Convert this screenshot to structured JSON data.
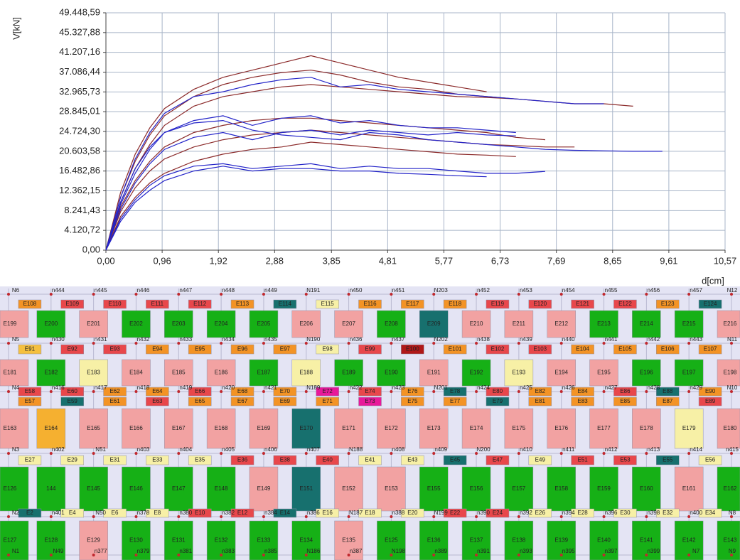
{
  "chart_data": {
    "type": "line",
    "y_label": "V[kN]",
    "x_label": "d[cm]",
    "x": [
      0,
      0.25,
      0.5,
      0.75,
      1,
      1.5,
      2,
      2.5,
      3,
      3.5,
      4,
      4.5,
      5,
      5.5,
      6,
      6.5,
      7,
      7.5,
      8,
      8.5,
      9,
      9.5
    ],
    "series": [
      {
        "color": "#8b2a2a",
        "values": [
          0,
          12000,
          20000,
          25500,
          29500,
          33500,
          36000,
          37500,
          39000,
          40500,
          39000,
          37500,
          36000,
          35000,
          34000,
          33000,
          null,
          null,
          null,
          null,
          null,
          null
        ]
      },
      {
        "color": "#8b2a2a",
        "values": [
          0,
          11000,
          18500,
          24000,
          28000,
          32000,
          34500,
          36000,
          37000,
          37500,
          36500,
          35000,
          34000,
          33500,
          32500,
          32000,
          31500,
          31000,
          30500,
          30500,
          30000,
          null
        ]
      },
      {
        "color": "#8b2a2a",
        "values": [
          0,
          10000,
          17000,
          22000,
          26000,
          30000,
          32000,
          33000,
          34000,
          34500,
          34000,
          33500,
          33000,
          32500,
          32000,
          31800,
          31500,
          null,
          null,
          null,
          null,
          null
        ]
      },
      {
        "color": "#8b2a2a",
        "values": [
          0,
          9000,
          14500,
          18500,
          21500,
          24500,
          26000,
          27000,
          27500,
          27500,
          27000,
          26500,
          26000,
          25500,
          25000,
          24500,
          23500,
          23000,
          null,
          null,
          null,
          null
        ]
      },
      {
        "color": "#8b2a2a",
        "values": [
          0,
          8000,
          13000,
          16500,
          19000,
          21500,
          23000,
          24000,
          24500,
          25000,
          24500,
          24000,
          23500,
          23000,
          22500,
          22000,
          21800,
          21500,
          21500,
          null,
          null,
          null
        ]
      },
      {
        "color": "#8b2a2a",
        "values": [
          0,
          7000,
          11000,
          14000,
          16000,
          18500,
          20000,
          21000,
          21500,
          22500,
          22000,
          21500,
          21000,
          20500,
          20000,
          19800,
          19500,
          null,
          null,
          null,
          null,
          null
        ]
      },
      {
        "color": "#2323c8",
        "values": [
          0,
          10000,
          17000,
          21500,
          24500,
          26500,
          27000,
          25000,
          24000,
          23500,
          23000,
          24500,
          24000,
          23000,
          22500,
          22000,
          21500,
          21000,
          20800,
          20700,
          20600,
          20600
        ]
      },
      {
        "color": "#2323c8",
        "values": [
          0,
          11000,
          19000,
          24500,
          28500,
          32000,
          33000,
          34500,
          35500,
          36000,
          34000,
          34500,
          33500,
          33000,
          32500,
          32000,
          31500,
          31000,
          30500,
          30500,
          null,
          null
        ]
      },
      {
        "color": "#2323c8",
        "values": [
          0,
          9500,
          16000,
          21000,
          24500,
          27000,
          28000,
          26000,
          27500,
          28000,
          26500,
          27000,
          26000,
          25500,
          25500,
          25000,
          24500,
          null,
          null,
          null,
          null,
          null
        ]
      },
      {
        "color": "#2323c8",
        "values": [
          0,
          8500,
          14000,
          18000,
          21000,
          23500,
          24500,
          23000,
          24500,
          25000,
          24000,
          25000,
          24500,
          24000,
          24500,
          24000,
          23800,
          null,
          null,
          null,
          null,
          null
        ]
      },
      {
        "color": "#2323c8",
        "values": [
          0,
          6500,
          10500,
          13500,
          15500,
          17500,
          18000,
          17000,
          17500,
          18000,
          17000,
          17500,
          17000,
          17000,
          16500,
          16000,
          16000,
          16400,
          null,
          null,
          null,
          null
        ]
      },
      {
        "color": "#2323c8",
        "values": [
          0,
          6000,
          10000,
          12500,
          14500,
          16500,
          17500,
          16500,
          17000,
          17000,
          16500,
          16500,
          16000,
          15800,
          15500,
          15300,
          null,
          null,
          null,
          null,
          null,
          null
        ]
      }
    ],
    "xlim": [
      0,
      10.57
    ],
    "xticks": [
      {
        "value": 0,
        "label": "0,00"
      },
      {
        "value": 0.96,
        "label": "0,96"
      },
      {
        "value": 1.92,
        "label": "1,92"
      },
      {
        "value": 2.88,
        "label": "2,88"
      },
      {
        "value": 3.85,
        "label": "3,85"
      },
      {
        "value": 4.81,
        "label": "4,81"
      },
      {
        "value": 5.77,
        "label": "5,77"
      },
      {
        "value": 6.73,
        "label": "6,73"
      },
      {
        "value": 7.69,
        "label": "7,69"
      },
      {
        "value": 8.65,
        "label": "8,65"
      },
      {
        "value": 9.61,
        "label": "9,61"
      },
      {
        "value": 10.57,
        "label": "10,57"
      }
    ],
    "ylim": [
      0,
      49448.59
    ],
    "yticks": [
      {
        "value": 0,
        "label": "0,00"
      },
      {
        "value": 4120.72,
        "label": "4.120,72"
      },
      {
        "value": 8241.43,
        "label": "8.241,43"
      },
      {
        "value": 12362.15,
        "label": "12.362,15"
      },
      {
        "value": 16482.86,
        "label": "16.482,86"
      },
      {
        "value": 20603.58,
        "label": "20.603,58"
      },
      {
        "value": 24724.3,
        "label": "24.724,30"
      },
      {
        "value": 28845.01,
        "label": "28.845,01"
      },
      {
        "value": 32965.73,
        "label": "32.965,73"
      },
      {
        "value": 37086.44,
        "label": "37.086,44"
      },
      {
        "value": 41207.16,
        "label": "41.207,16"
      },
      {
        "value": 45327.88,
        "label": "45.327,88"
      },
      {
        "value": 49448.59,
        "label": "49.448,59"
      }
    ],
    "grid": true
  },
  "mesh": {
    "node_rows": [
      [
        "N6",
        "n444",
        "n445",
        "n446",
        "n447",
        "n448",
        "n449",
        "N191",
        "n450",
        "n451",
        "N203",
        "n452",
        "n453",
        "n454",
        "n455",
        "n456",
        "n457",
        "N12"
      ],
      [
        "N5",
        "n430",
        "n431",
        "n432",
        "n433",
        "n434",
        "n435",
        "N190",
        "n436",
        "n437",
        "N202",
        "n438",
        "n439",
        "n440",
        "n441",
        "n442",
        "n443",
        "N11"
      ],
      [
        "N4",
        "n416",
        "n417",
        "n418",
        "n419",
        "n420",
        "n421",
        "N189",
        "n422",
        "n423",
        "N201",
        "n424",
        "n425",
        "n426",
        "n427",
        "n428",
        "n429",
        "N10"
      ],
      [
        "N3",
        "n402",
        "N51",
        "n403",
        "n404",
        "n405",
        "n406",
        "n407",
        "N188",
        "n408",
        "n409",
        "N200",
        "n410",
        "n411",
        "n412",
        "n413",
        "n414",
        "n415"
      ],
      [
        "N2",
        "n401",
        "N50",
        "n378",
        "n380",
        "n382",
        "n384",
        "n386",
        "N187",
        "n388",
        "N199",
        "n390",
        "n392",
        "n394",
        "n396",
        "n398",
        "n400",
        "N8"
      ],
      [
        "N1",
        "N49",
        "n377",
        "n379",
        "n381",
        "n383",
        "n385",
        "N186",
        "n387",
        "N198",
        "n389",
        "n391",
        "n393",
        "n395",
        "n397",
        "n399",
        "N7",
        "N9"
      ]
    ],
    "element_rows": [
      {
        "labels": [
          "E108",
          "E109",
          "E110",
          "E111",
          "E112",
          "E113",
          "E114",
          "E115",
          "E116",
          "E117",
          "E118",
          "E119",
          "E120",
          "E121",
          "E122",
          "E123",
          "E124"
        ],
        "colors": [
          "#f39325",
          "#e8474b",
          "#e8474b",
          "#e8474b",
          "#e8474b",
          "#f39325",
          "#17706e",
          "#f7f0a6",
          "#f39325",
          "#f39325",
          "#f39325",
          "#e8474b",
          "#e8474b",
          "#e8474b",
          "#e8474b",
          "#f39325",
          "#17706e"
        ]
      },
      {
        "labels": [
          "E199",
          "E200",
          "E201",
          "E202",
          "E203",
          "E204",
          "E205",
          "E206",
          "E207",
          "E208",
          "E209",
          "E210",
          "E211",
          "E212",
          "E213",
          "E214",
          "E215",
          "E216"
        ],
        "colors": [
          "#f2a2a2",
          "#16b016",
          "#f2a2a2",
          "#16b016",
          "#16b016",
          "#16b016",
          "#16b016",
          "#f2a2a2",
          "#f2a2a2",
          "#16b016",
          "#17706e",
          "#f2a2a2",
          "#f2a2a2",
          "#f2a2a2",
          "#16b016",
          "#16b016",
          "#16b016",
          "#f2a2a2"
        ]
      },
      {
        "labels": [
          "E91",
          "E92",
          "E93",
          "E94",
          "E95",
          "E96",
          "E97",
          "E98",
          "E99",
          "E100",
          "E101",
          "E102",
          "E103",
          "E104",
          "E105",
          "E106",
          "E107"
        ],
        "colors": [
          "#f5c040",
          "#e8474b",
          "#e8474b",
          "#f39325",
          "#f39325",
          "#f39325",
          "#f39325",
          "#f7f0a6",
          "#e8474b",
          "#b01818",
          "#f39325",
          "#e8474b",
          "#e8474b",
          "#f39325",
          "#f39325",
          "#f39325",
          "#f39325"
        ]
      },
      {
        "labels": [
          "E181",
          "E182",
          "E183",
          "E184",
          "E185",
          "E186",
          "E187",
          "E188",
          "E189",
          "E190",
          "E191",
          "E192",
          "E193",
          "E194",
          "E195",
          "E196",
          "E197",
          "E198"
        ],
        "colors": [
          "#f2a2a2",
          "#16b016",
          "#f7f0a6",
          "#f2a2a2",
          "#f2a2a2",
          "#f2a2a2",
          "#16b016",
          "#f7f0a6",
          "#16b016",
          "#16b016",
          "#f2a2a2",
          "#16b016",
          "#f7f0a6",
          "#f2a2a2",
          "#f2a2a2",
          "#16b016",
          "#16b016",
          "#f2a2a2"
        ]
      },
      {
        "labels": [
          "E58",
          "E60",
          "E62",
          "E64",
          "E66",
          "E68",
          "E70",
          "E72",
          "E74",
          "E76",
          "E78",
          "E80",
          "E82",
          "E84",
          "E86",
          "E88",
          "E90"
        ],
        "colors": [
          "#e8474b",
          "#e8474b",
          "#f39325",
          "#f39325",
          "#e8474b",
          "#f39325",
          "#f39325",
          "#e8199a",
          "#e8474b",
          "#f39325",
          "#17706e",
          "#e8474b",
          "#f39325",
          "#f39325",
          "#e8474b",
          "#17706e",
          "#f39325"
        ]
      },
      {
        "labels": [
          "E57",
          "E59",
          "E61",
          "E63",
          "E65",
          "E67",
          "E69",
          "E71",
          "E73",
          "E75",
          "E77",
          "E79",
          "E81",
          "E83",
          "E85",
          "E87",
          "E89"
        ],
        "colors": [
          "#f39325",
          "#17706e",
          "#f39325",
          "#e8474b",
          "#f39325",
          "#f39325",
          "#f39325",
          "#f39325",
          "#e8199a",
          "#f39325",
          "#f39325",
          "#17706e",
          "#f39325",
          "#f39325",
          "#f39325",
          "#f39325",
          "#e8474b"
        ]
      },
      {
        "labels": [
          "E163",
          "E164",
          "E165",
          "E166",
          "E167",
          "E168",
          "E169",
          "E170",
          "E171",
          "E172",
          "E173",
          "E174",
          "E175",
          "E176",
          "E177",
          "E178",
          "E179",
          "E180"
        ],
        "colors": [
          "#f2a2a2",
          "#f5b030",
          "#f2a2a2",
          "#f2a2a2",
          "#f2a2a2",
          "#f2a2a2",
          "#f2a2a2",
          "#17706e",
          "#f2a2a2",
          "#f2a2a2",
          "#f2a2a2",
          "#f2a2a2",
          "#f2a2a2",
          "#f2a2a2",
          "#f2a2a2",
          "#f2a2a2",
          "#f7f0a6",
          "#f2a2a2"
        ]
      },
      {
        "labels": [
          "E27",
          "E29",
          "E31",
          "E33",
          "E35",
          "E36",
          "E38",
          "E40",
          "E41",
          "E43",
          "E45",
          "E47",
          "E49",
          "E51",
          "E53",
          "E55",
          "E56"
        ],
        "colors": [
          "#f7f0a6",
          "#f7f0a6",
          "#f7f0a6",
          "#f7f0a6",
          "#f7f0a6",
          "#e8474b",
          "#e8474b",
          "#e8474b",
          "#f7f0a6",
          "#f7f0a6",
          "#17706e",
          "#e8474b",
          "#f7f0a6",
          "#e8474b",
          "#e8474b",
          "#17706e",
          "#f7f0a6"
        ]
      },
      {
        "labels": [
          "E126",
          "144",
          "E145",
          "E146",
          "E147",
          "E148",
          "E149",
          "E151",
          "E152",
          "E153",
          "E155",
          "E156",
          "E157",
          "E158",
          "E159",
          "E160",
          "E161",
          "E162"
        ],
        "colors": [
          "#16b016",
          "#16b016",
          "#16b016",
          "#16b016",
          "#16b016",
          "#16b016",
          "#f2a2a2",
          "#17706e",
          "#f2a2a2",
          "#f2a2a2",
          "#16b016",
          "#16b016",
          "#16b016",
          "#16b016",
          "#16b016",
          "#16b016",
          "#f2a2a2",
          "#16b016"
        ]
      },
      {
        "labels": [
          "E2",
          "E4",
          "E6",
          "E8",
          "E10",
          "E12",
          "E14",
          "E16",
          "E18",
          "E20",
          "E22",
          "E24",
          "E26",
          "E28",
          "E30",
          "E32",
          "E34"
        ],
        "colors": [
          "#17706e",
          "#f7f0a6",
          "#f7f0a6",
          "#f7f0a6",
          "#e8474b",
          "#e8474b",
          "#17706e",
          "#f7f0a6",
          "#f7f0a6",
          "#f7f0a6",
          "#e8474b",
          "#e8474b",
          "#f7f0a6",
          "#f7f0a6",
          "#f7f0a6",
          "#f7f0a6",
          "#f7f0a6"
        ]
      },
      {
        "labels": [
          "E127",
          "E128",
          "E129",
          "E130",
          "E131",
          "E132",
          "E133",
          "E134",
          "E135",
          "E125",
          "E136",
          "E137",
          "E138",
          "E139",
          "E140",
          "E141",
          "E142",
          "E143"
        ],
        "colors": [
          "#16b016",
          "#16b016",
          "#f2a2a2",
          "#16b016",
          "#16b016",
          "#16b016",
          "#16b016",
          "#16b016",
          "#f2a2a2",
          "#16b016",
          "#16b016",
          "#16b016",
          "#16b016",
          "#16b016",
          "#16b016",
          "#16b016",
          "#16b016",
          "#16b016"
        ]
      }
    ]
  }
}
